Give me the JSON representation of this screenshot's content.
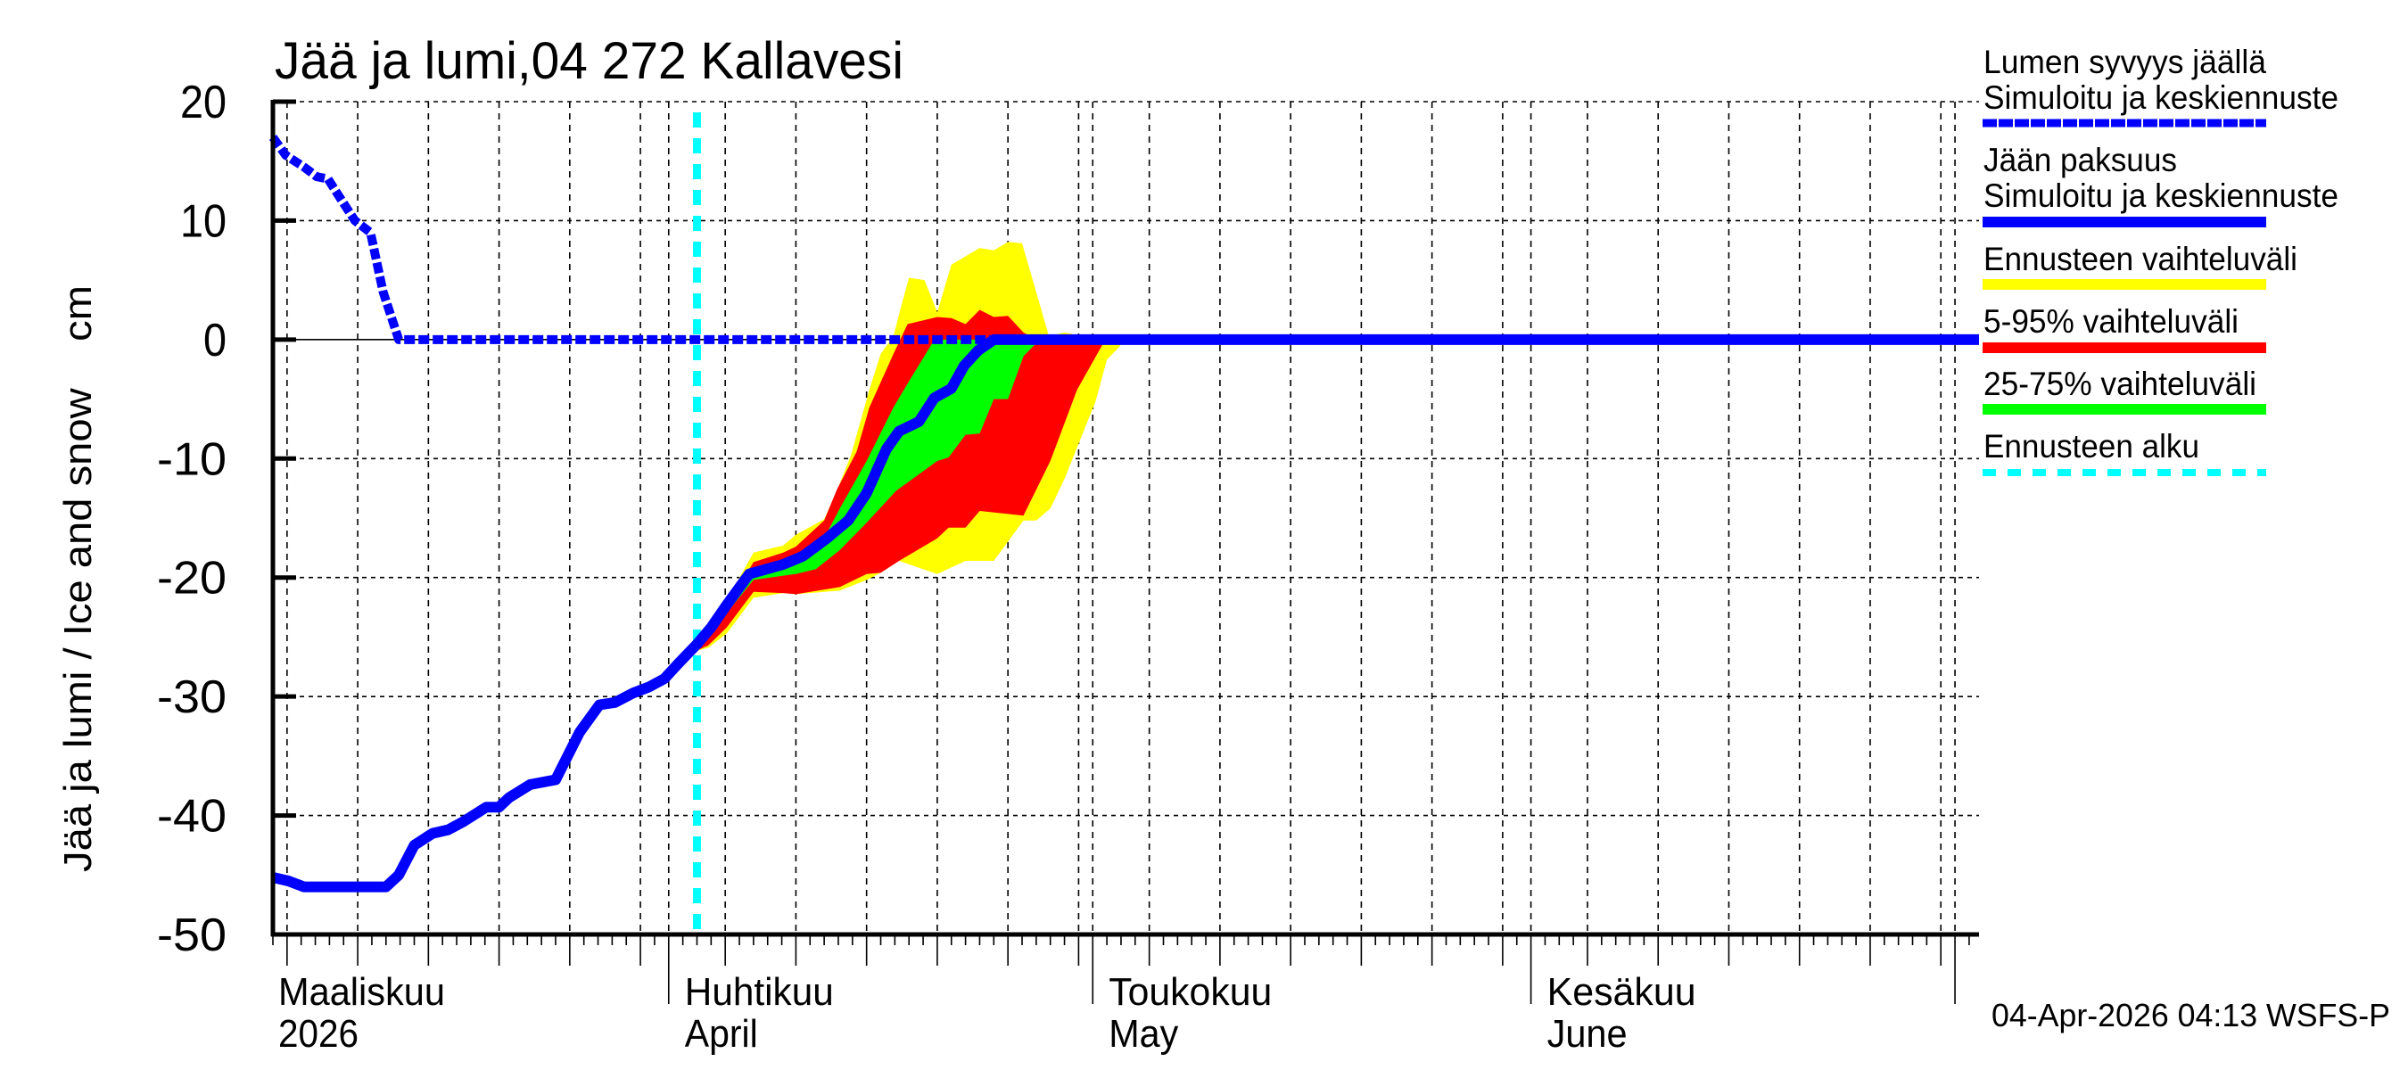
{
  "chart_data": {
    "type": "area",
    "title": "Jää ja lumi,04 272 Kallavesi",
    "ylabel": "Jää ja lumi / Ice and snow    cm",
    "xlabel": "",
    "x_unit": "day number counted from 2026-03-01 (= day 1)",
    "xlim": [
      4,
      124.7
    ],
    "ylim": [
      -50,
      20
    ],
    "yticks": [
      20,
      10,
      0,
      -10,
      -20,
      -30,
      -40,
      -50
    ],
    "grid": true,
    "legend_position": "right",
    "month_labels": [
      {
        "day": 4,
        "line1": "Maaliskuu",
        "line2": "2026"
      },
      {
        "day": 32,
        "line1": "Huhtikuu",
        "line2": "April"
      },
      {
        "day": 62,
        "line1": "Toukokuu",
        "line2": "May"
      },
      {
        "day": 93,
        "line1": "Kesäkuu",
        "line2": "June"
      }
    ],
    "forecast_start_day": 34,
    "series": [
      {
        "name": "Ennusteen vaihteluväli",
        "kind": "band",
        "color": "#ffff00",
        "upper": [
          [
            33.9,
            -25.7
          ],
          [
            34.8,
            -24.2
          ],
          [
            36.1,
            -21.9
          ],
          [
            38,
            -17.9
          ],
          [
            40.1,
            -17.3
          ],
          [
            41,
            -16.4
          ],
          [
            43,
            -15.1
          ],
          [
            43.9,
            -12.7
          ],
          [
            44.9,
            -9.7
          ],
          [
            46.2,
            -4.2
          ],
          [
            47,
            -1.2
          ],
          [
            47.9,
            0.3
          ],
          [
            48.4,
            2.6
          ],
          [
            49,
            5.2
          ],
          [
            50.1,
            5.0
          ],
          [
            51,
            2.3
          ],
          [
            52,
            6.3
          ],
          [
            54,
            7.7
          ],
          [
            55,
            7.5
          ],
          [
            56,
            8.2
          ],
          [
            57,
            8.1
          ],
          [
            58.9,
            0.3
          ],
          [
            60,
            0.6
          ],
          [
            62.6,
            0
          ]
        ],
        "lower": [
          [
            33.9,
            -26.2
          ],
          [
            34.8,
            -25.9
          ],
          [
            36.1,
            -24.7
          ],
          [
            38,
            -21.7
          ],
          [
            40.1,
            -21.3
          ],
          [
            41,
            -21.4
          ],
          [
            44.1,
            -21.1
          ],
          [
            46,
            -20.2
          ],
          [
            47,
            -19.6
          ],
          [
            48.3,
            -18.6
          ],
          [
            50,
            -19.3
          ],
          [
            51,
            -19.7
          ],
          [
            53,
            -18.6
          ],
          [
            55,
            -18.6
          ],
          [
            57.1,
            -15.2
          ],
          [
            58,
            -15.2
          ],
          [
            59,
            -14.2
          ],
          [
            60,
            -11.7
          ],
          [
            62.2,
            -5.2
          ],
          [
            63,
            -1.7
          ],
          [
            63.8,
            -0.7
          ],
          [
            64.3,
            0
          ]
        ]
      },
      {
        "name": "5-95% vaihteluväli",
        "kind": "band",
        "color": "#ff0000",
        "upper": [
          [
            33.9,
            -25.9
          ],
          [
            34.8,
            -24.4
          ],
          [
            36.1,
            -22.4
          ],
          [
            38,
            -18.7
          ],
          [
            40.1,
            -17.9
          ],
          [
            41,
            -17.4
          ],
          [
            43,
            -15.2
          ],
          [
            43.9,
            -12.6
          ],
          [
            45.3,
            -9.4
          ],
          [
            46.2,
            -5.7
          ],
          [
            47.9,
            -1.2
          ],
          [
            48.9,
            1.3
          ],
          [
            51,
            1.9
          ],
          [
            52,
            1.8
          ],
          [
            53,
            1.3
          ],
          [
            54,
            2.5
          ],
          [
            55,
            1.9
          ],
          [
            56,
            2.0
          ],
          [
            57.1,
            0.6
          ],
          [
            58,
            0
          ]
        ],
        "lower": [
          [
            33.9,
            -26.2
          ],
          [
            34.8,
            -25.7
          ],
          [
            36.1,
            -24.2
          ],
          [
            38,
            -21.2
          ],
          [
            40.1,
            -21.3
          ],
          [
            41,
            -21.4
          ],
          [
            44.1,
            -20.8
          ],
          [
            46,
            -19.7
          ],
          [
            47,
            -19.6
          ],
          [
            48.3,
            -18.6
          ],
          [
            51,
            -16.7
          ],
          [
            51.8,
            -15.8
          ],
          [
            53,
            -15.8
          ],
          [
            54,
            -14.4
          ],
          [
            57.1,
            -14.8
          ],
          [
            59,
            -10.2
          ],
          [
            60.9,
            -4.2
          ],
          [
            62.8,
            -0.2
          ],
          [
            63,
            0
          ]
        ]
      },
      {
        "name": "25-75% vaihteluväli",
        "kind": "band",
        "color": "#00ff00",
        "upper": [
          [
            34.8,
            -24.7
          ],
          [
            38,
            -19.4
          ],
          [
            41,
            -18.2
          ],
          [
            43,
            -16.7
          ],
          [
            44.1,
            -14.2
          ],
          [
            46,
            -10.2
          ],
          [
            47.9,
            -5.7
          ],
          [
            48.9,
            -3.7
          ],
          [
            50.8,
            0
          ],
          [
            54,
            0
          ]
        ],
        "lower": [
          [
            34.8,
            -24.9
          ],
          [
            38,
            -20.2
          ],
          [
            41,
            -19.7
          ],
          [
            42.4,
            -19.3
          ],
          [
            44.1,
            -17.7
          ],
          [
            46,
            -15.4
          ],
          [
            48.1,
            -12.7
          ],
          [
            51,
            -10.2
          ],
          [
            51.8,
            -9.9
          ],
          [
            53,
            -8.0
          ],
          [
            54,
            -7.9
          ],
          [
            55,
            -5.0
          ],
          [
            56,
            -5.0
          ],
          [
            57.1,
            -1.4
          ],
          [
            58,
            -0.3
          ],
          [
            58.2,
            0
          ]
        ]
      },
      {
        "name": "Lumen syvyys jäällä — Simuloitu ja keskiennuste",
        "kind": "dashed-line",
        "color": "#0000ff",
        "points": [
          [
            4,
            17
          ],
          [
            4.9,
            15.5
          ],
          [
            6.2,
            14.5
          ],
          [
            7.1,
            13.7
          ],
          [
            7.9,
            13.5
          ],
          [
            8.7,
            12
          ],
          [
            9.8,
            10
          ],
          [
            10.9,
            9
          ],
          [
            11.8,
            4
          ],
          [
            12.9,
            0
          ],
          [
            124.7,
            0
          ]
        ]
      },
      {
        "name": "Jään paksuus — Simuloitu ja keskiennuste",
        "kind": "line",
        "color": "#0000ff",
        "points": [
          [
            4,
            -45.2
          ],
          [
            5.1,
            -45.5
          ],
          [
            6.2,
            -46
          ],
          [
            7.6,
            -46
          ],
          [
            12,
            -46
          ],
          [
            12.9,
            -45
          ],
          [
            14,
            -42.5
          ],
          [
            15.3,
            -41.5
          ],
          [
            16.4,
            -41.2
          ],
          [
            17.5,
            -40.5
          ],
          [
            19.1,
            -39.3
          ],
          [
            20,
            -39.3
          ],
          [
            20.7,
            -38.5
          ],
          [
            22.2,
            -37.4
          ],
          [
            24,
            -37
          ],
          [
            25.7,
            -33
          ],
          [
            27.1,
            -30.7
          ],
          [
            28.2,
            -30.5
          ],
          [
            29.5,
            -29.7
          ],
          [
            30.6,
            -29.2
          ],
          [
            31.7,
            -28.5
          ],
          [
            32.7,
            -27.2
          ],
          [
            34,
            -25.6
          ],
          [
            35,
            -24.2
          ],
          [
            36.1,
            -22.3
          ],
          [
            37.7,
            -19.7
          ],
          [
            40.1,
            -18.9
          ],
          [
            41.5,
            -18.2
          ],
          [
            43.2,
            -16.7
          ],
          [
            44.7,
            -15.2
          ],
          [
            46,
            -12.9
          ],
          [
            47.4,
            -9.2
          ],
          [
            48.3,
            -7.7
          ],
          [
            49.7,
            -6.9
          ],
          [
            50.8,
            -4.9
          ],
          [
            52,
            -4.1
          ],
          [
            52.9,
            -2.2
          ],
          [
            53.9,
            -0.9
          ],
          [
            55,
            0
          ],
          [
            124.7,
            0
          ]
        ]
      }
    ]
  },
  "legend": [
    {
      "line1": "Lumen syvyys jäällä",
      "line2": "Simuloitu ja keskiennuste",
      "style": "dashed",
      "color": "#0000ff"
    },
    {
      "line1": "Jään paksuus",
      "line2": "Simuloitu ja keskiennuste",
      "style": "solid",
      "color": "#0000ff"
    },
    {
      "line1": "Ennusteen vaihteluväli",
      "style": "bar",
      "color": "#ffff00"
    },
    {
      "line1": "5-95% vaihteluväli",
      "style": "bar",
      "color": "#ff0000"
    },
    {
      "line1": "25-75% vaihteluväli",
      "style": "bar",
      "color": "#00ff00"
    },
    {
      "line1": "Ennusteen alku",
      "style": "dotted",
      "color": "#00ffff"
    }
  ],
  "footer": "04-Apr-2026 04:13 WSFS-P"
}
